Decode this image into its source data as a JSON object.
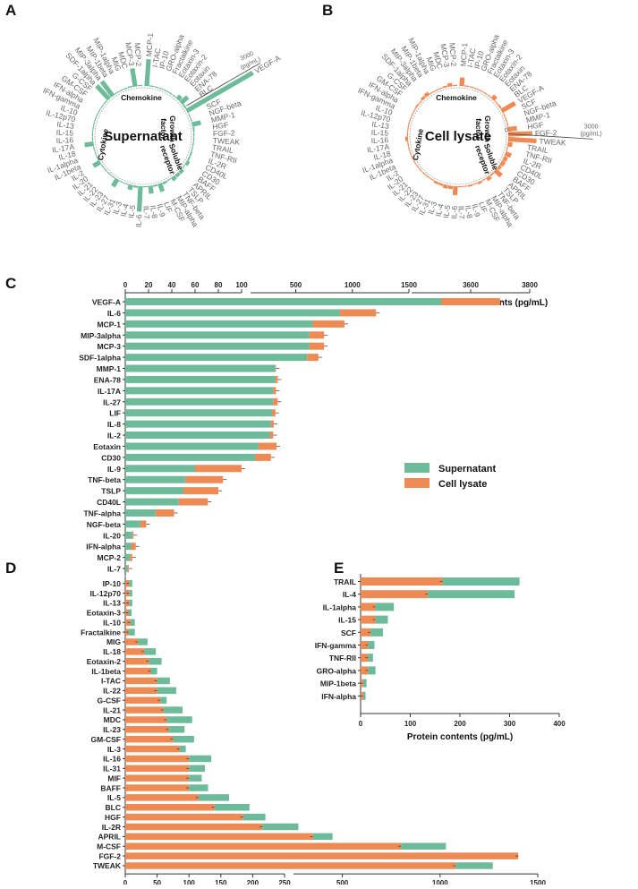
{
  "colors": {
    "supernatant": "#6dbb9b",
    "cell_lysate": "#ee8b55",
    "axis": "#333333",
    "radial_text": "#666666"
  },
  "panels": {
    "A": "A",
    "B": "B",
    "C": "C",
    "D": "D",
    "E": "E"
  },
  "legend": {
    "supernatant": "Supernatant",
    "cell_lysate": "Cell lysate"
  },
  "chart_data": [
    {
      "id": "A",
      "type": "bar",
      "layout": "radial",
      "center_label": "Supernatant",
      "groups": [
        "Chemokine",
        "Growth factor",
        "Soluble receptor",
        "Cytokine"
      ],
      "scale_label": "3000",
      "scale_unit": "(pg/mL)",
      "categories": [
        "MCP-1",
        "I-TAC",
        "IP-10",
        "GRO-alpha",
        "Fractalkine",
        "Eotaxin-3",
        "Eotaxin-2",
        "Eotaxin",
        "ENA-78",
        "BLC",
        "VEGF-A",
        "SCF",
        "NGF-beta",
        "MMP-1",
        "HGF",
        "FGF-2",
        "TWEAK",
        "TRAIL",
        "TNF-RII",
        "IL-2R",
        "CD40L",
        "CD30",
        "BAFF",
        "APRIL",
        "TSLP",
        "TNF-beta",
        "MIP-alpha",
        "M-CSF",
        "LIF",
        "IL-9",
        "IL-8",
        "IL-7",
        "IL-6",
        "IL-5",
        "IL-4",
        "IL-3",
        "IL-31",
        "IL-27",
        "IL-23",
        "IL-22",
        "IL-21",
        "IL-20",
        "IL-2",
        "IL-1beta",
        "IL-1alpha",
        "IL-18",
        "IL-17A",
        "IL-16",
        "IL-15",
        "IL-13",
        "IL-12p70",
        "IL-10",
        "IFN-gamma",
        "IFN-alpha",
        "GM-CSF",
        "G-CSF",
        "SDF-1alpha",
        "MIP-3alpha",
        "MIP-1beta",
        "MIP-1alpha",
        "MIG",
        "MDC",
        "MCP-3",
        "MCP-2"
      ],
      "values": [
        950,
        30,
        5,
        30,
        5,
        3,
        30,
        170,
        320,
        60,
        2700,
        25,
        30,
        320,
        60,
        10,
        15,
        20,
        25,
        60,
        60,
        120,
        30,
        130,
        120,
        150,
        15,
        80,
        300,
        60,
        280,
        3,
        900,
        70,
        180,
        8,
        15,
        300,
        20,
        20,
        20,
        8,
        280,
        15,
        25,
        20,
        320,
        20,
        15,
        5,
        5,
        5,
        15,
        8,
        20,
        15,
        650,
        650,
        5,
        5,
        10,
        50,
        650,
        8
      ]
    },
    {
      "id": "B",
      "type": "bar",
      "layout": "radial",
      "center_label": "Cell lysate",
      "groups": [
        "Chemokine",
        "Growth factor",
        "Soluble receptor",
        "Cytokine"
      ],
      "scale_label": "3000",
      "scale_unit": "(pg/mL)",
      "scale_zero": "0",
      "categories": [
        "MCP-1",
        "I-TAC",
        "IP-10",
        "GRO-alpha",
        "Fractalkine",
        "Eotaxin-3",
        "Eotaxin-2",
        "Eotaxin",
        "ENA-78",
        "BLC",
        "VEGF-A",
        "SCF",
        "NGF-beta",
        "MMP-1",
        "HGF",
        "FGF-2",
        "TWEAK",
        "TRAIL",
        "TNF-RII",
        "IL-2R",
        "CD40L",
        "CD30",
        "BAFF",
        "APRIL",
        "TSLP",
        "TNF-beta",
        "MIP-alpha",
        "M-CSF",
        "LIF",
        "IL-9",
        "IL-8",
        "IL-7",
        "IL-6",
        "IL-5",
        "IL-4",
        "IL-3",
        "IL-31",
        "IL-27",
        "IL-23",
        "IL-22",
        "IL-21",
        "IL-20",
        "IL-2",
        "IL-1beta",
        "IL-1alpha",
        "IL-18",
        "IL-17A",
        "IL-16",
        "IL-15",
        "IL-13",
        "IL-12p70",
        "IL-10",
        "IFN-gamma",
        "IFN-alpha",
        "GM-CSF",
        "G-CSF",
        "SDF-1alpha",
        "MIP-3alpha",
        "MIP-1beta",
        "MIP-1alpha",
        "MIG",
        "MDC",
        "MCP-3",
        "MCP-2"
      ],
      "values": [
        300,
        20,
        5,
        15,
        5,
        3,
        25,
        170,
        40,
        60,
        550,
        25,
        30,
        40,
        320,
        850,
        1000,
        170,
        15,
        220,
        150,
        150,
        120,
        300,
        60,
        140,
        15,
        80,
        30,
        60,
        25,
        3,
        320,
        120,
        130,
        80,
        85,
        30,
        40,
        40,
        15,
        8,
        30,
        20,
        25,
        30,
        40,
        100,
        30,
        5,
        5,
        5,
        10,
        8,
        60,
        30,
        100,
        130,
        10,
        5,
        25,
        60,
        120,
        8
      ]
    },
    {
      "id": "C",
      "type": "bar",
      "orientation": "horizontal",
      "stacked": true,
      "xlabel": "Protein contents (pg/mL)",
      "x_ticks": [
        "0",
        "20",
        "40",
        "60",
        "80",
        "100",
        "500",
        "1000",
        "1500",
        "3600",
        "3800"
      ],
      "x_axis_segments": [
        {
          "range": [
            0,
            100
          ]
        },
        {
          "range": [
            100,
            1500
          ]
        },
        {
          "range": [
            3400,
            3800
          ]
        }
      ],
      "categories": [
        "VEGF-A",
        "IL-6",
        "MCP-1",
        "MIP-3alpha",
        "MCP-3",
        "SDF-1alpha",
        "MMP-1",
        "ENA-78",
        "IL-17A",
        "IL-27",
        "LIF",
        "IL-8",
        "IL-2",
        "Eotaxin",
        "CD30",
        "IL-9",
        "TNF-beta",
        "TSLP",
        "CD40L",
        "TNF-alpha",
        "NGF-beta",
        "IL-20",
        "IFN-alpha",
        "MCP-2",
        "IL-7"
      ],
      "series": [
        {
          "name": "Supernatant",
          "values": [
            3500,
            890,
            650,
            620,
            620,
            600,
            320,
            320,
            300,
            300,
            290,
            280,
            270,
            170,
            140,
            60,
            52,
            50,
            46,
            26,
            13,
            6,
            5,
            4,
            2
          ]
        },
        {
          "name": "Cell lysate",
          "values": [
            200,
            320,
            280,
            130,
            130,
            100,
            5,
            20,
            25,
            40,
            30,
            25,
            30,
            160,
            140,
            40,
            32,
            30,
            25,
            16,
            5,
            1,
            4,
            2,
            1
          ]
        }
      ]
    },
    {
      "id": "D",
      "type": "bar",
      "orientation": "horizontal",
      "stacked": true,
      "xlabel": "Protein contents (pg/mL)",
      "x_ticks": [
        "0",
        "50",
        "100",
        "150",
        "200",
        "250",
        "500",
        "1000",
        "1500"
      ],
      "x_axis_segments": [
        {
          "range": [
            0,
            250
          ]
        },
        {
          "range": [
            250,
            1500
          ]
        }
      ],
      "categories": [
        "IP-10",
        "IL-12p70",
        "IL-13",
        "Eotaxin-3",
        "IL-10",
        "Fractalkine",
        "MIG",
        "IL-18",
        "Eotaxin-2",
        "IL-1beta",
        "I-TAC",
        "IL-22",
        "G-CSF",
        "IL-21",
        "MDC",
        "IL-23",
        "GM-CSF",
        "IL-3",
        "IL-16",
        "IL-31",
        "MIF",
        "BAFF",
        "IL-5",
        "BLC",
        "HGF",
        "IL-2R",
        "APRIL",
        "M-CSF",
        "FGF-2",
        "TWEAK"
      ],
      "series": [
        {
          "name": "Cell lysate",
          "values": [
            6,
            6,
            6,
            5,
            8,
            5,
            20,
            30,
            37,
            40,
            50,
            50,
            55,
            60,
            65,
            68,
            75,
            85,
            100,
            100,
            100,
            100,
            115,
            140,
            185,
            215,
            350,
            800,
            1400,
            1080
          ]
        },
        {
          "name": "Supernatant",
          "values": [
            5,
            5,
            5,
            5,
            7,
            10,
            15,
            18,
            20,
            10,
            20,
            30,
            10,
            30,
            40,
            25,
            33,
            10,
            35,
            25,
            20,
            30,
            48,
            55,
            35,
            60,
            100,
            230,
            0,
            190
          ]
        }
      ]
    },
    {
      "id": "E",
      "type": "bar",
      "orientation": "horizontal",
      "stacked": true,
      "xlabel": "Protein contents (pg/mL)",
      "x_ticks": [
        "0",
        "100",
        "200",
        "300",
        "400"
      ],
      "xlim": [
        0,
        400
      ],
      "categories": [
        "TRAIL",
        "IL-4",
        "IL-1alpha",
        "IL-15",
        "SCF",
        "IFN-gamma",
        "TNF-RII",
        "GRO-alpha",
        "MIP-1beta",
        "IFN-alpha"
      ],
      "series": [
        {
          "name": "Cell lysate",
          "values": [
            165,
            135,
            30,
            30,
            20,
            15,
            15,
            15,
            5,
            5
          ]
        },
        {
          "name": "Supernatant",
          "values": [
            155,
            175,
            37,
            25,
            25,
            13,
            10,
            15,
            7,
            5
          ]
        }
      ]
    }
  ]
}
